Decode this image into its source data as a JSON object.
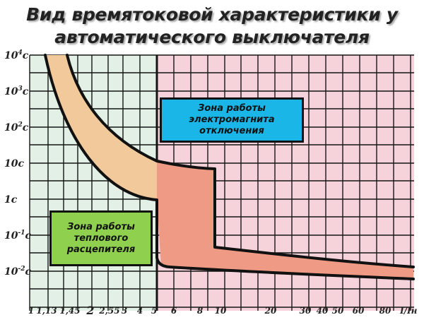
{
  "title": {
    "line1": "Вид времятоковой характеристики у",
    "line2": "автоматического выключателя"
  },
  "y_axis": {
    "ticks": [
      {
        "base": "10",
        "sup": "4",
        "unit": "с"
      },
      {
        "base": "10",
        "sup": "3",
        "unit": "с"
      },
      {
        "base": "10",
        "sup": "2",
        "unit": "с"
      },
      {
        "base": "10с",
        "sup": "",
        "unit": ""
      },
      {
        "base": "1с",
        "sup": "",
        "unit": ""
      },
      {
        "base": "10",
        "sup": "-1",
        "unit": "с"
      },
      {
        "base": "10",
        "sup": "-2",
        "unit": "с"
      }
    ]
  },
  "x_axis": {
    "ticks": [
      "1",
      "1,13",
      "1,45",
      "2",
      "2,55",
      "3",
      "4",
      "5",
      "6",
      "8",
      "10",
      "20",
      "30",
      "40",
      "50",
      "60",
      "80"
    ],
    "title": "I/Iн"
  },
  "zones": {
    "electromagnetic": [
      "Зона работы",
      "электромагнита",
      "отключения"
    ],
    "thermal": [
      "Зона работы",
      "теплового",
      "расцепителя"
    ]
  },
  "colors": {
    "thermal_region_bg": "#e3f0e6",
    "magnetic_region_bg": "#f6d3db",
    "grid": "#151515",
    "thermal_band": "#f1c99b",
    "magnetic_band": "#ee9a84",
    "curve": "#111111",
    "em_label_bg": "#1bb6e8",
    "th_label_bg": "#8fd14f"
  }
}
